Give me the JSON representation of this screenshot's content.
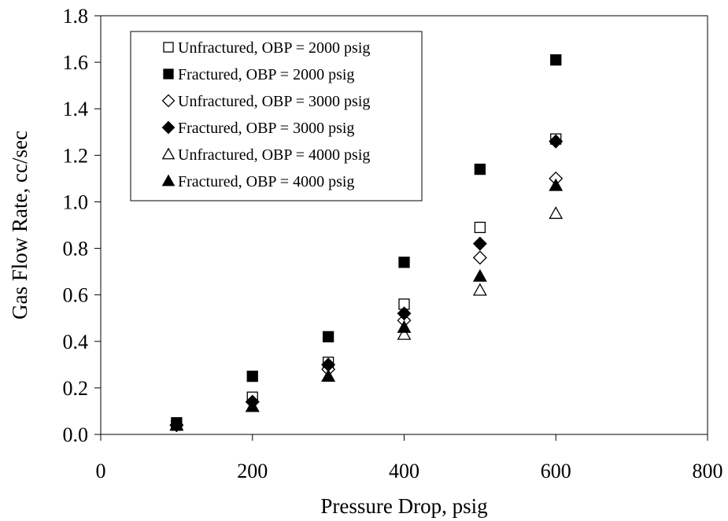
{
  "chart_data": {
    "type": "scatter",
    "xlabel": "Pressure Drop, psig",
    "ylabel": "Gas Flow Rate, cc/sec",
    "xlim": [
      0,
      800
    ],
    "ylim": [
      0,
      1.8
    ],
    "xticks": [
      0,
      200,
      400,
      600,
      800
    ],
    "xtick_labels": [
      "0",
      "200",
      "400",
      "600",
      "800"
    ],
    "yticks": [
      0,
      0.2,
      0.4,
      0.6,
      0.8,
      1.0,
      1.2,
      1.4,
      1.6,
      1.8
    ],
    "ytick_labels": [
      "0.0",
      "0.2",
      "0.4",
      "0.6",
      "0.8",
      "1.0",
      "1.2",
      "1.4",
      "1.6",
      "1.8"
    ],
    "grid": false,
    "legend_position": "top-left",
    "series": [
      {
        "name": "Unfractured, OBP = 2000 psig",
        "marker": "square",
        "filled": false,
        "x": [
          100,
          200,
          300,
          400,
          500,
          600
        ],
        "y": [
          0.04,
          0.16,
          0.31,
          0.56,
          0.89,
          1.27
        ]
      },
      {
        "name": "Fractured, OBP = 2000 psig",
        "marker": "square",
        "filled": true,
        "x": [
          100,
          200,
          300,
          400,
          500,
          600
        ],
        "y": [
          0.05,
          0.25,
          0.42,
          0.74,
          1.14,
          1.61
        ]
      },
      {
        "name": "Unfractured, OBP = 3000 psig",
        "marker": "diamond",
        "filled": false,
        "x": [
          100,
          200,
          300,
          400,
          500,
          600
        ],
        "y": [
          0.04,
          0.14,
          0.28,
          0.49,
          0.76,
          1.1
        ]
      },
      {
        "name": "Fractured, OBP = 3000 psig",
        "marker": "diamond",
        "filled": true,
        "x": [
          100,
          200,
          300,
          400,
          500,
          600
        ],
        "y": [
          0.04,
          0.14,
          0.3,
          0.52,
          0.82,
          1.26
        ]
      },
      {
        "name": "Unfractured, OBP = 4000 psig",
        "marker": "triangle",
        "filled": false,
        "x": [
          100,
          200,
          300,
          400,
          500,
          600
        ],
        "y": [
          0.04,
          0.12,
          0.25,
          0.43,
          0.62,
          0.95
        ]
      },
      {
        "name": "Fractured, OBP = 4000 psig",
        "marker": "triangle",
        "filled": true,
        "x": [
          100,
          200,
          300,
          400,
          500,
          600
        ],
        "y": [
          0.04,
          0.12,
          0.25,
          0.46,
          0.68,
          1.07
        ]
      }
    ],
    "colors": {
      "marker": "#000000",
      "background": "#ffffff"
    }
  }
}
